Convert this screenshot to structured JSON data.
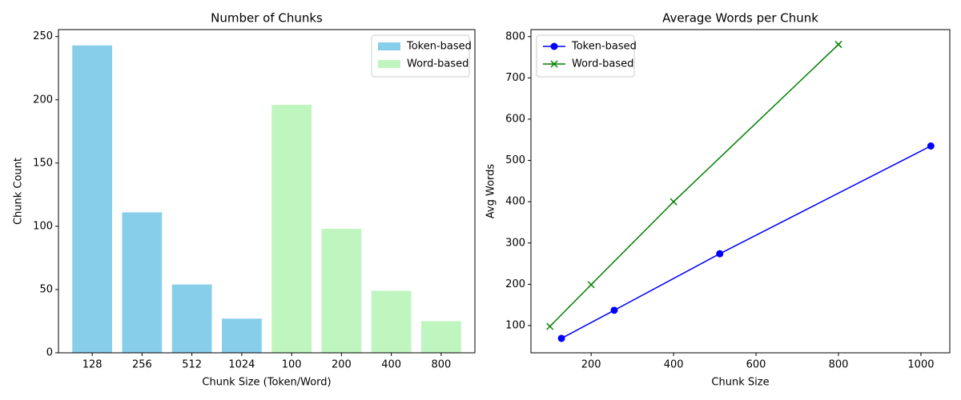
{
  "chart_data": [
    {
      "type": "bar",
      "title": "Number of Chunks",
      "xlabel": "Chunk Size (Token/Word)",
      "ylabel": "Chunk Count",
      "categories": [
        "128",
        "256",
        "512",
        "1024",
        "100",
        "200",
        "400",
        "800"
      ],
      "series": [
        {
          "name": "Token-based",
          "color": "#87ceeb",
          "values": [
            243,
            111,
            54,
            27,
            null,
            null,
            null,
            null
          ]
        },
        {
          "name": "Word-based",
          "color": "#bff5bf",
          "values": [
            null,
            null,
            null,
            null,
            196,
            98,
            49,
            25
          ]
        }
      ],
      "ylim": [
        0,
        255.5
      ],
      "yticks": [
        0,
        50,
        100,
        150,
        200,
        250
      ],
      "legend": "upper right"
    },
    {
      "type": "line",
      "title": "Average Words per Chunk",
      "xlabel": "Chunk Size",
      "ylabel": "Avg Words",
      "series": [
        {
          "name": "Token-based",
          "color": "#0000ff",
          "marker": "o",
          "x": [
            128,
            256,
            512,
            1024
          ],
          "values": [
            69,
            137,
            274,
            535
          ]
        },
        {
          "name": "Word-based",
          "color": "#008000",
          "marker": "x",
          "x": [
            100,
            200,
            400,
            800
          ],
          "values": [
            98,
            199,
            400,
            781
          ]
        }
      ],
      "xlim": [
        54,
        1070
      ],
      "xticks": [
        200,
        400,
        600,
        800,
        1000
      ],
      "ylim": [
        34,
        817
      ],
      "yticks": [
        100,
        200,
        300,
        400,
        500,
        600,
        700,
        800
      ],
      "legend": "upper left"
    }
  ]
}
